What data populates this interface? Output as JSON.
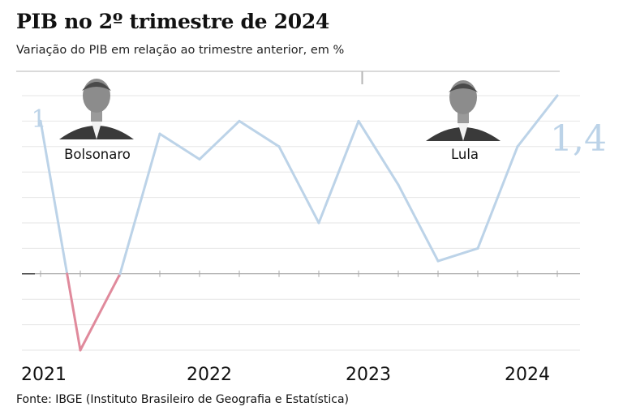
{
  "header": {
    "title": "PIB no 2º trimestre de 2024",
    "subtitle": "Variação do PIB em relação ao trimestre anterior, em %"
  },
  "footer": {
    "source": "Fonte: IBGE (Instituto Brasileiro de Geografia e Estatística)"
  },
  "colors": {
    "positive_line": "#bcd3e8",
    "negative_line": "#e08a9c",
    "grid": "#e6e6e6",
    "zero_line": "#999999",
    "portrait_fill": "#3a3a3a"
  },
  "chart_data": {
    "type": "line",
    "title": "PIB no 2º trimestre de 2024",
    "subtitle": "Variação do PIB em relação ao trimestre anterior, em %",
    "x": [
      "2021-Q1",
      "2021-Q2",
      "2021-Q3",
      "2021-Q4",
      "2022-Q1",
      "2022-Q2",
      "2022-Q3",
      "2022-Q4",
      "2023-Q1",
      "2023-Q2",
      "2023-Q3",
      "2023-Q4",
      "2024-Q1",
      "2024-Q2"
    ],
    "series": [
      {
        "values": [
          1.2,
          -0.6,
          0.0,
          1.1,
          0.9,
          1.2,
          1.0,
          0.4,
          1.2,
          0.7,
          0.1,
          0.2,
          1.0,
          1.4
        ]
      }
    ],
    "ylim": [
      -0.6,
      1.4
    ],
    "grid": true,
    "x_tick_labels": [
      {
        "label": "2021",
        "index": 0
      },
      {
        "label": "2022",
        "index": 4
      },
      {
        "label": "2023",
        "index": 8
      },
      {
        "label": "2024",
        "index": 12
      }
    ],
    "annotations": {
      "start_value": "1",
      "end_value": "1,4"
    },
    "periods": [
      {
        "name": "Bolsonaro",
        "icon": "bolsonaro-portrait-icon",
        "from_index": 0,
        "to_index": 8
      },
      {
        "name": "Lula",
        "icon": "lula-portrait-icon",
        "from_index": 8,
        "to_index": 14
      }
    ]
  }
}
